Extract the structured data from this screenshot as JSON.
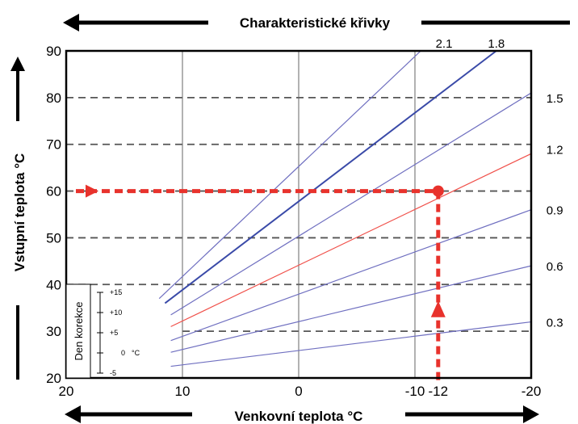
{
  "chart_data": {
    "type": "line",
    "title": "Charakteristické křivky",
    "xlabel": "Venkovní teplota °C",
    "ylabel": "Vstupní teplota °C",
    "xlim": [
      20,
      -20
    ],
    "ylim": [
      20,
      90
    ],
    "x_axis_reversed": true,
    "x_ticks": [
      {
        "value": 20,
        "label": "20"
      },
      {
        "value": 10,
        "label": "10"
      },
      {
        "value": 0,
        "label": "0"
      },
      {
        "value": -10,
        "label": "-10"
      },
      {
        "value": -12,
        "label": "-12"
      },
      {
        "value": -20,
        "label": "-20"
      }
    ],
    "y_ticks": [
      {
        "value": 20,
        "label": "20"
      },
      {
        "value": 30,
        "label": "30"
      },
      {
        "value": 40,
        "label": "40"
      },
      {
        "value": 50,
        "label": "50"
      },
      {
        "value": 60,
        "label": "60"
      },
      {
        "value": 70,
        "label": "70"
      },
      {
        "value": 80,
        "label": "80"
      },
      {
        "value": 90,
        "label": "90"
      }
    ],
    "vertical_gridlines": [
      10,
      0,
      -10
    ],
    "dashed_gridlines": [
      80,
      70,
      60,
      50,
      40
    ],
    "extra_dashed": {
      "y": 30,
      "x_from": 10,
      "x_to": -20
    },
    "series": [
      {
        "name": "2.1",
        "color": "#6f6fc0",
        "width": 1.2,
        "x": [
          12,
          -10.5
        ],
        "y": [
          37,
          90
        ],
        "label_x": -12.5,
        "label_y": 90
      },
      {
        "name": "1.8",
        "color": "#3a4aa8",
        "width": 2.0,
        "x": [
          11.5,
          -17
        ],
        "y": [
          36,
          90
        ],
        "label_x": -17,
        "label_y": 90
      },
      {
        "name": "1.5",
        "color": "#6f6fc0",
        "width": 1.2,
        "x": [
          11,
          -20
        ],
        "y": [
          33.5,
          81
        ],
        "label_x": -21.3,
        "label_y": 80
      },
      {
        "name": "1.2",
        "color": "#f0504a",
        "width": 1.2,
        "x": [
          11,
          -20
        ],
        "y": [
          31,
          68
        ],
        "label_x": -21.3,
        "label_y": 69
      },
      {
        "name": "0.9",
        "color": "#6f6fc0",
        "width": 1.2,
        "x": [
          11,
          -20
        ],
        "y": [
          28,
          56
        ],
        "label_x": -21.3,
        "label_y": 56
      },
      {
        "name": "0.6",
        "color": "#6f6fc0",
        "width": 1.2,
        "x": [
          11,
          -20
        ],
        "y": [
          25.5,
          44
        ],
        "label_x": -21.3,
        "label_y": 44
      },
      {
        "name": "0.3",
        "color": "#6f6fc0",
        "width": 1.2,
        "x": [
          11,
          -20
        ],
        "y": [
          22.5,
          32
        ],
        "label_x": -21.3,
        "label_y": 32
      }
    ],
    "highlight": {
      "color": "#e8322c",
      "x": -12,
      "y": 60
    },
    "inset": {
      "label": "Den korekce",
      "ticks": [
        "+15",
        "+10",
        "+5",
        "0",
        "-5"
      ],
      "unit": "°C"
    }
  }
}
